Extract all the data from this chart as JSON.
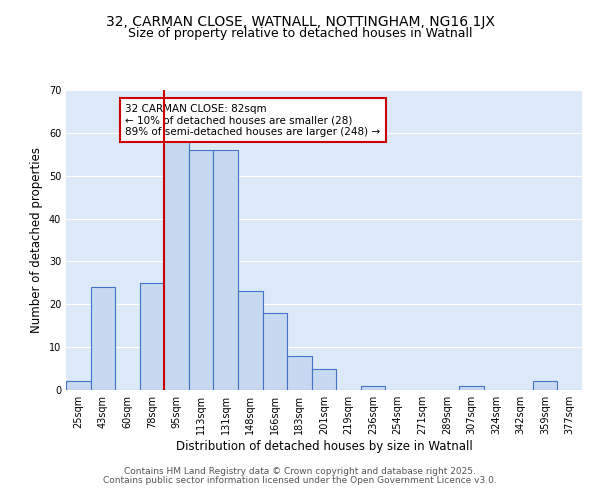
{
  "title": "32, CARMAN CLOSE, WATNALL, NOTTINGHAM, NG16 1JX",
  "subtitle": "Size of property relative to detached houses in Watnall",
  "xlabel": "Distribution of detached houses by size in Watnall",
  "ylabel": "Number of detached properties",
  "bar_labels": [
    "25sqm",
    "43sqm",
    "60sqm",
    "78sqm",
    "95sqm",
    "113sqm",
    "131sqm",
    "148sqm",
    "166sqm",
    "183sqm",
    "201sqm",
    "219sqm",
    "236sqm",
    "254sqm",
    "271sqm",
    "289sqm",
    "307sqm",
    "324sqm",
    "342sqm",
    "359sqm",
    "377sqm"
  ],
  "bar_values": [
    2,
    24,
    0,
    25,
    58,
    56,
    56,
    23,
    18,
    8,
    5,
    0,
    1,
    0,
    0,
    0,
    1,
    0,
    0,
    2,
    0
  ],
  "bar_color": "#c6d9f1",
  "bar_edge_color": "#4472c4",
  "ylim": [
    0,
    70
  ],
  "yticks": [
    0,
    10,
    20,
    30,
    40,
    50,
    60,
    70
  ],
  "vline_x": 3.5,
  "vline_color": "#cc0000",
  "annotation_text": "32 CARMAN CLOSE: 82sqm\n← 10% of detached houses are smaller (28)\n89% of semi-detached houses are larger (248) →",
  "annotation_box_color": "#ffffff",
  "annotation_box_edgecolor": "#cc0000",
  "footer_line1": "Contains HM Land Registry data © Crown copyright and database right 2025.",
  "footer_line2": "Contains public sector information licensed under the Open Government Licence v3.0.",
  "bg_color": "#dce9f8",
  "fig_bg_color": "#ffffff",
  "title_fontsize": 10,
  "subtitle_fontsize": 9,
  "axis_label_fontsize": 8.5,
  "tick_fontsize": 7,
  "annotation_fontsize": 7.5,
  "footer_fontsize": 6.5
}
